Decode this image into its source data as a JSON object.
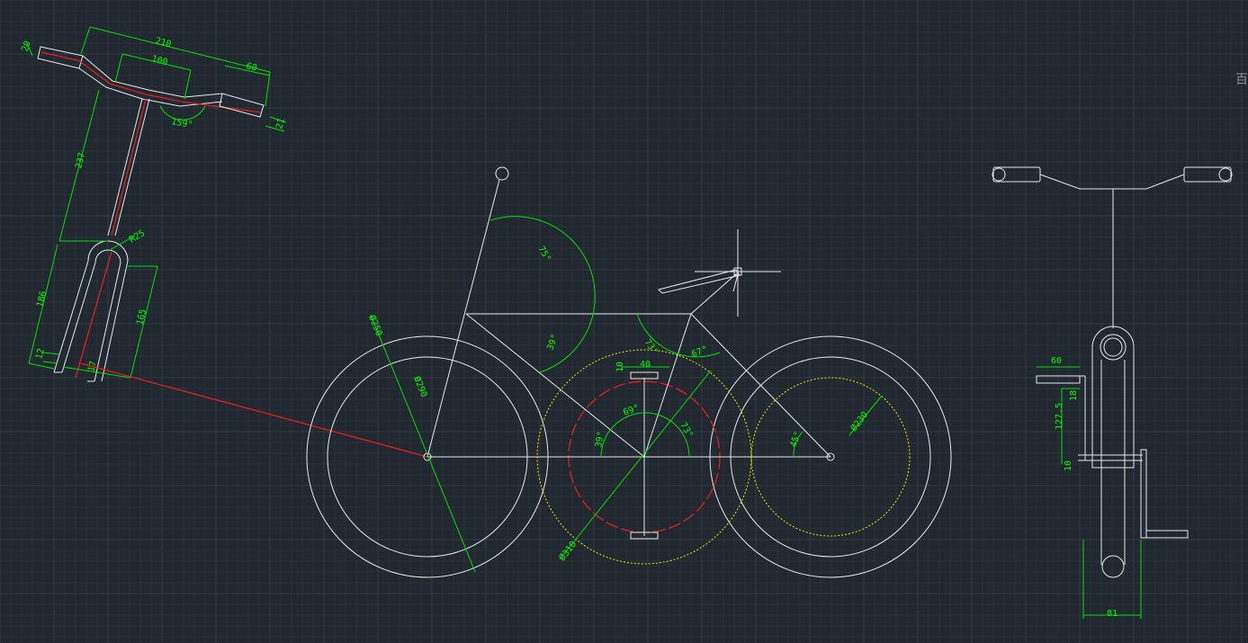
{
  "colors": {
    "background": "#212830",
    "grid_minor": "#2a313a",
    "grid_major": "#323a44",
    "geometry": "#e8e8e8",
    "dimension": "#00e000",
    "centerline": "#e02020",
    "hidden": "#e8e800"
  },
  "handlebar_view": {
    "dims": {
      "d210": "210",
      "d100": "100",
      "d60": "60",
      "d20": "20",
      "d21": "21",
      "a159": "159°",
      "d237": "237",
      "r25": "R25",
      "d186": "186",
      "d165": "165",
      "d12": "12",
      "d17": "17"
    }
  },
  "side_view": {
    "dims": {
      "a75": "75°",
      "a39_top": "39°",
      "a73_top": "73°",
      "a67": "67°",
      "d250": "Ø250",
      "d290": "Ø290",
      "d10": "10",
      "d40": "40",
      "a69": "69°",
      "a39_left": "39°",
      "a73_right": "73°",
      "a45": "45°",
      "d230": "Ø230",
      "d310": "Ø310"
    }
  },
  "front_view": {
    "dims": {
      "d60": "60",
      "d18": "18",
      "d127": "127.5",
      "d10": "10",
      "d81": "81"
    }
  },
  "ui": {
    "corner_glyph": "百"
  }
}
